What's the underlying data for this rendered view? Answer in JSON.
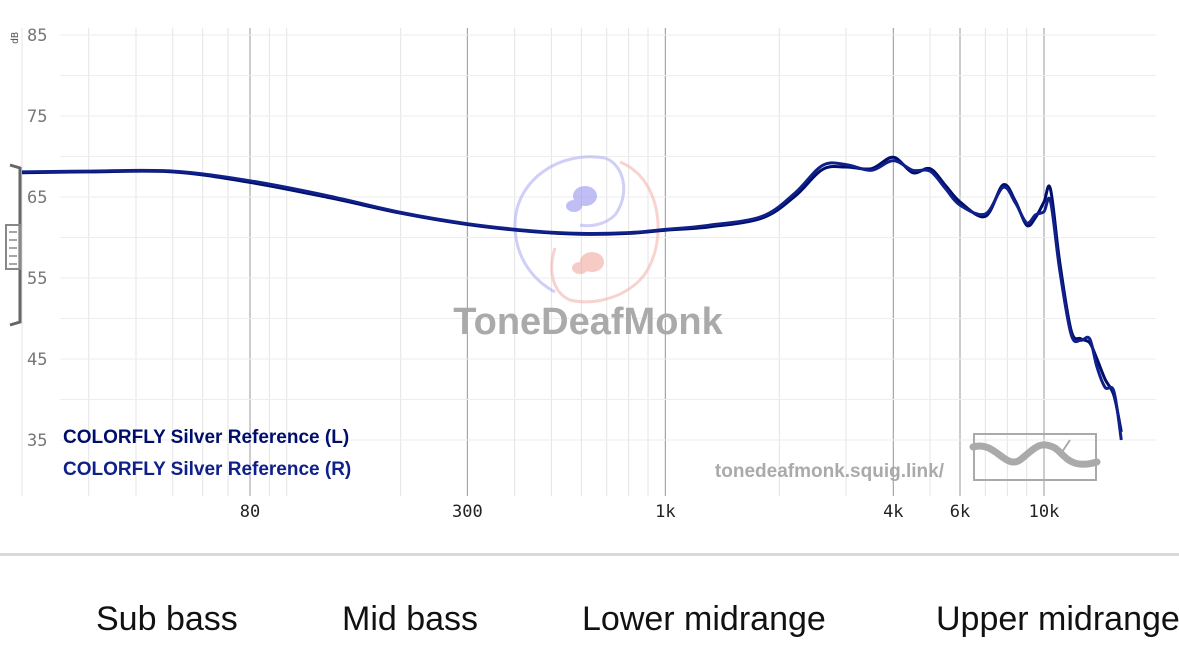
{
  "chart_data": {
    "type": "line",
    "title": "",
    "xlabel": "",
    "ylabel": "",
    "y_unit": "dB",
    "x_scale": "log",
    "xlim": [
      20,
      20000
    ],
    "ylim": [
      30,
      85
    ],
    "y_ticks": [
      85,
      75,
      65,
      55,
      45,
      35
    ],
    "x_ticks": [
      {
        "value": 80,
        "label": "80"
      },
      {
        "value": 300,
        "label": "300"
      },
      {
        "value": 1000,
        "label": "1k"
      },
      {
        "value": 4000,
        "label": "4k"
      },
      {
        "value": 6000,
        "label": "6k"
      },
      {
        "value": 10000,
        "label": "10k"
      }
    ],
    "grid": true,
    "legend_position": "bottom-left",
    "series": [
      {
        "name": "COLORFLY Silver Reference (L)",
        "color": "#000e6b",
        "x": [
          20,
          30,
          50,
          80,
          130,
          200,
          300,
          450,
          600,
          800,
          1000,
          1300,
          1800,
          2200,
          2600,
          3000,
          3500,
          4000,
          4500,
          5000,
          5500,
          6000,
          7000,
          7800,
          8400,
          9000,
          9500,
          10000,
          10400,
          11000,
          11800,
          12500,
          13200,
          13800,
          14500,
          15300,
          16000
        ],
        "values": [
          68.0,
          68.1,
          68.1,
          66.8,
          64.9,
          63.0,
          61.6,
          60.7,
          60.4,
          60.5,
          60.9,
          61.3,
          62.4,
          65.1,
          68.4,
          68.7,
          68.5,
          69.9,
          68.0,
          68.5,
          66.4,
          64.4,
          62.6,
          66.5,
          64.5,
          61.5,
          62.5,
          64.4,
          66.0,
          57.0,
          48.5,
          47.5,
          47.0,
          45.0,
          42.5,
          40.5,
          36.0
        ]
      },
      {
        "name": "COLORFLY Silver Reference (R)",
        "color": "#10208a",
        "x": [
          20,
          30,
          50,
          80,
          130,
          200,
          300,
          450,
          600,
          800,
          1000,
          1300,
          1800,
          2200,
          2600,
          3000,
          3500,
          4000,
          4500,
          5000,
          5500,
          6000,
          7000,
          7800,
          8400,
          9000,
          9500,
          10000,
          10400,
          11000,
          11800,
          12500,
          13200,
          13800,
          14500,
          15300,
          16000
        ],
        "values": [
          68.1,
          68.2,
          68.2,
          67.0,
          65.1,
          63.1,
          61.7,
          60.8,
          60.5,
          60.6,
          61.0,
          61.5,
          62.6,
          65.5,
          68.9,
          69.0,
          68.3,
          69.5,
          68.3,
          68.2,
          66.0,
          64.0,
          62.9,
          66.2,
          64.3,
          61.8,
          62.8,
          63.2,
          64.5,
          56.0,
          48.0,
          47.3,
          47.5,
          44.0,
          41.5,
          41.0,
          35.0
        ]
      }
    ]
  },
  "watermark": {
    "brand": "ToneDeafMonk",
    "url": "tonedeafmonk.squig.link/"
  },
  "frequency_bands": [
    "Sub bass",
    "Mid bass",
    "Lower midrange",
    "Upper midrange"
  ]
}
